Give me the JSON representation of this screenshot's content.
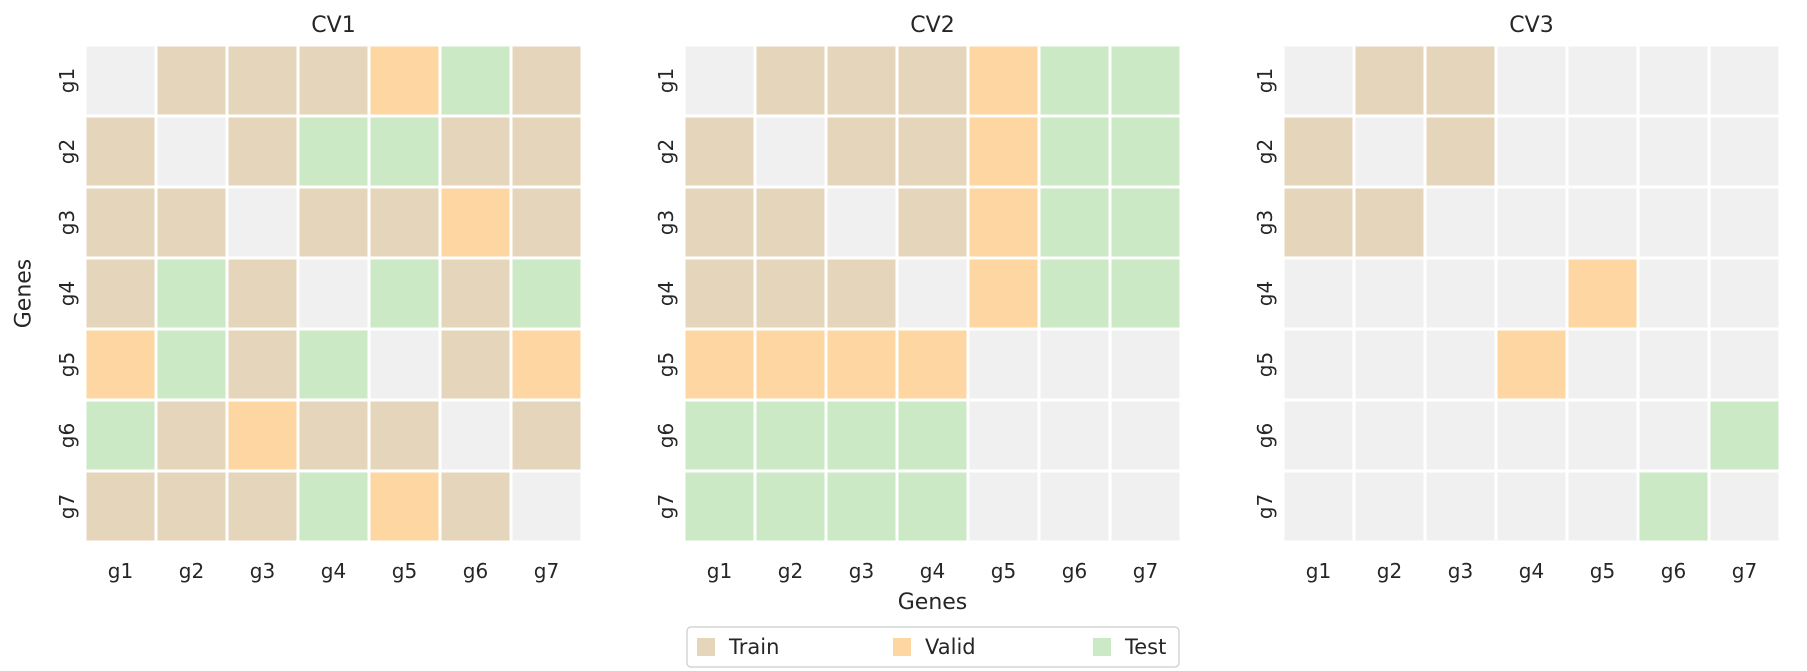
{
  "chart_data": {
    "type": "heatmap",
    "genes": [
      "g1",
      "g2",
      "g3",
      "g4",
      "g5",
      "g6",
      "g7"
    ],
    "xlabel": "Genes",
    "ylabel": "Genes",
    "category_codes": {
      "0": "none",
      "1": "Train",
      "2": "Valid",
      "3": "Test"
    },
    "colors": {
      "none": "#f0f0f0",
      "Train": "#e5d6bb",
      "Valid": "#fed6a1",
      "Test": "#cbe9c5",
      "grid": "#ffffff"
    },
    "legend": {
      "position": "bottom-center",
      "entries": [
        "Train",
        "Valid",
        "Test"
      ]
    },
    "panels": [
      {
        "title": "CV1",
        "matrix": [
          [
            0,
            1,
            1,
            1,
            2,
            3,
            1
          ],
          [
            1,
            0,
            1,
            3,
            3,
            1,
            1
          ],
          [
            1,
            1,
            0,
            1,
            1,
            2,
            1
          ],
          [
            1,
            3,
            1,
            0,
            3,
            1,
            3
          ],
          [
            2,
            3,
            1,
            3,
            0,
            1,
            2
          ],
          [
            3,
            1,
            2,
            1,
            1,
            0,
            1
          ],
          [
            1,
            1,
            1,
            3,
            2,
            1,
            0
          ]
        ]
      },
      {
        "title": "CV2",
        "matrix": [
          [
            0,
            1,
            1,
            1,
            2,
            3,
            3
          ],
          [
            1,
            0,
            1,
            1,
            2,
            3,
            3
          ],
          [
            1,
            1,
            0,
            1,
            2,
            3,
            3
          ],
          [
            1,
            1,
            1,
            0,
            2,
            3,
            3
          ],
          [
            2,
            2,
            2,
            2,
            0,
            0,
            0
          ],
          [
            3,
            3,
            3,
            3,
            0,
            0,
            0
          ],
          [
            3,
            3,
            3,
            3,
            0,
            0,
            0
          ]
        ]
      },
      {
        "title": "CV3",
        "matrix": [
          [
            0,
            1,
            1,
            0,
            0,
            0,
            0
          ],
          [
            1,
            0,
            1,
            0,
            0,
            0,
            0
          ],
          [
            1,
            1,
            0,
            0,
            0,
            0,
            0
          ],
          [
            0,
            0,
            0,
            0,
            2,
            0,
            0
          ],
          [
            0,
            0,
            0,
            2,
            0,
            0,
            0
          ],
          [
            0,
            0,
            0,
            0,
            0,
            0,
            3
          ],
          [
            0,
            0,
            0,
            0,
            0,
            3,
            0
          ]
        ]
      }
    ]
  }
}
